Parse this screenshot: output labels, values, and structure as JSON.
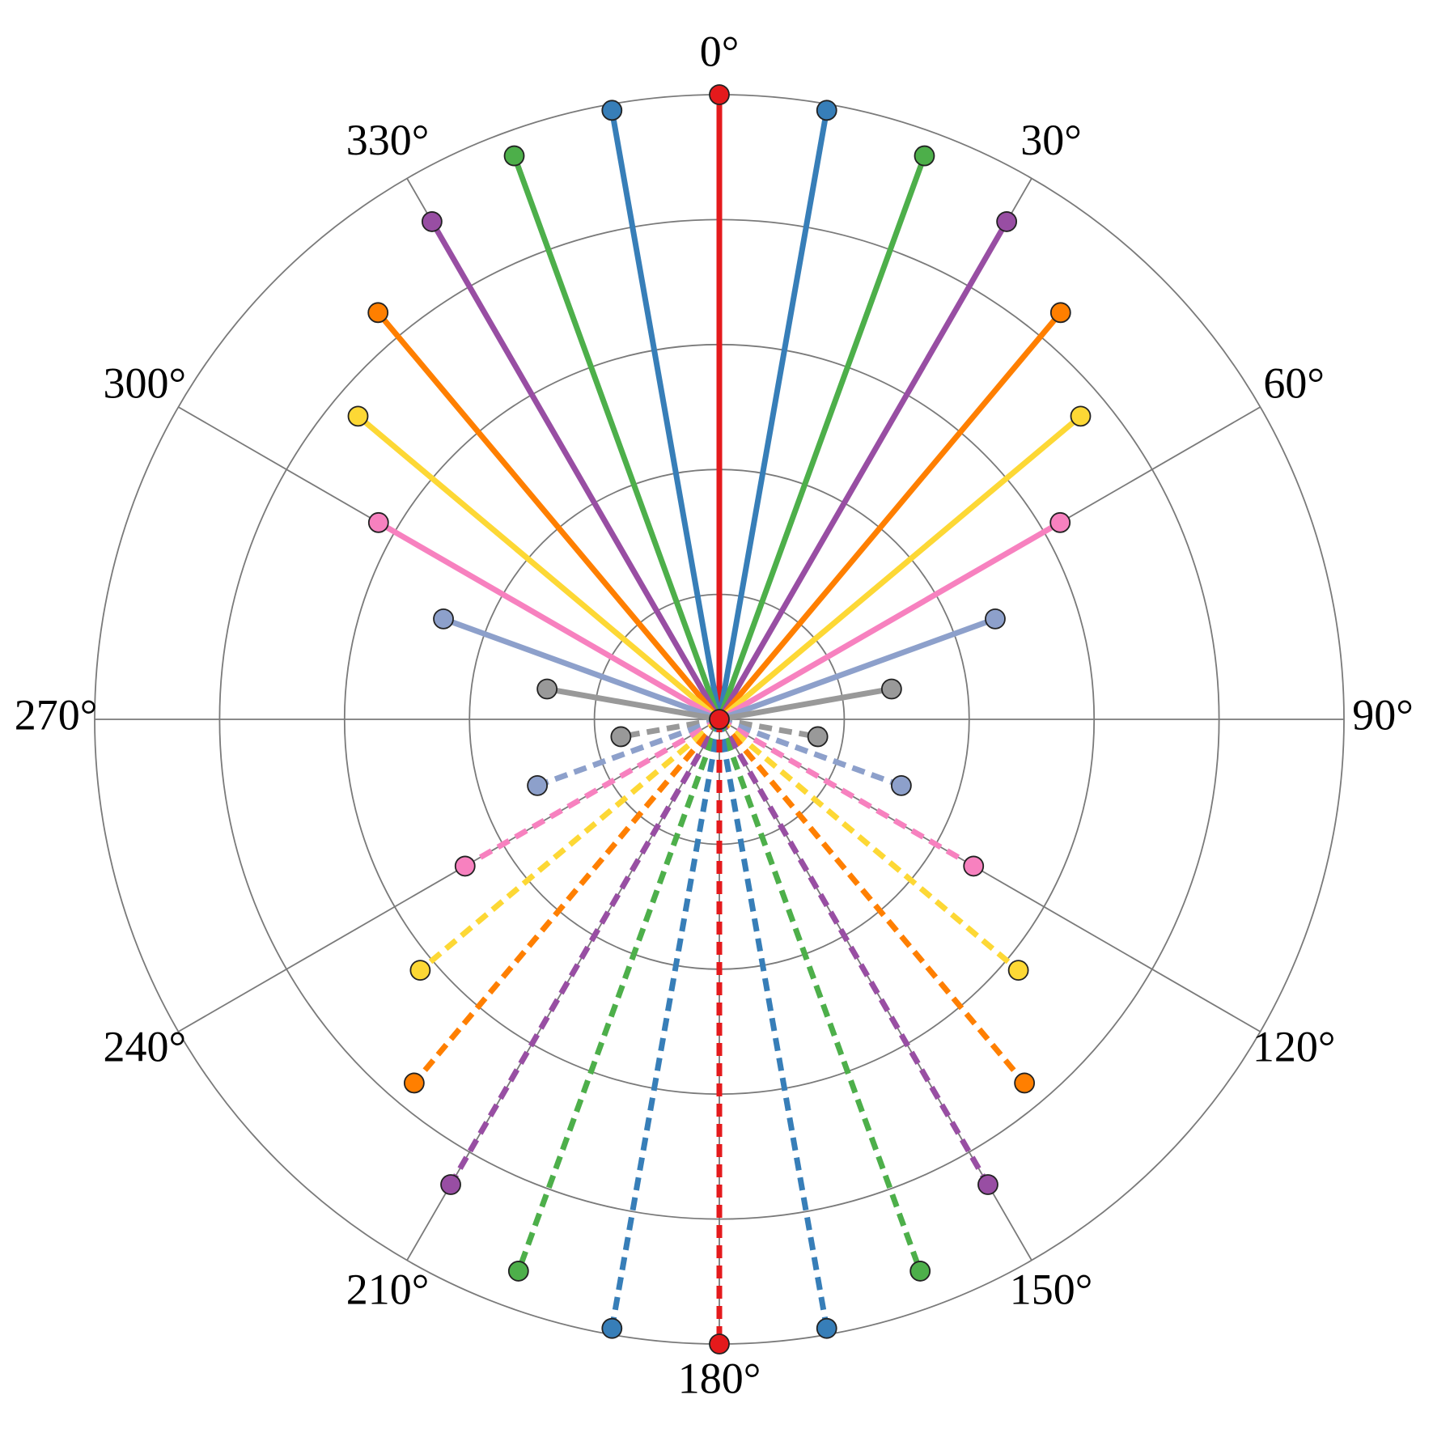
{
  "chart_data": {
    "type": "polar",
    "rlim": [
      0,
      1
    ],
    "rticks": [
      0.2,
      0.4,
      0.6,
      0.8,
      1.0
    ],
    "thetaticks": [
      {
        "value": 0,
        "label": "0°"
      },
      {
        "value": 30,
        "label": "30°"
      },
      {
        "value": 60,
        "label": "60°"
      },
      {
        "value": 90,
        "label": "90°"
      },
      {
        "value": 120,
        "label": "120°"
      },
      {
        "value": 150,
        "label": "150°"
      },
      {
        "value": 180,
        "label": "180°"
      },
      {
        "value": 210,
        "label": "210°"
      },
      {
        "value": 240,
        "label": "240°"
      },
      {
        "value": 270,
        "label": "270°"
      },
      {
        "value": 300,
        "label": "300°"
      },
      {
        "value": 330,
        "label": "330°"
      }
    ],
    "grid": true,
    "series": [
      {
        "color": "#e41a1c",
        "style": "solid",
        "theta": [
          0
        ],
        "r": [
          1.0
        ]
      },
      {
        "color": "#377eb8",
        "style": "solid",
        "theta": [
          350,
          10
        ],
        "r": [
          0.99,
          0.99
        ]
      },
      {
        "color": "#4daf4a",
        "style": "solid",
        "theta": [
          340,
          20
        ],
        "r": [
          0.96,
          0.96
        ]
      },
      {
        "color": "#984ea3",
        "style": "solid",
        "theta": [
          330,
          30
        ],
        "r": [
          0.92,
          0.92
        ]
      },
      {
        "color": "#ff7f00",
        "style": "solid",
        "theta": [
          320,
          40
        ],
        "r": [
          0.85,
          0.85
        ]
      },
      {
        "color": "#fdd835",
        "style": "solid",
        "theta": [
          310,
          50
        ],
        "r": [
          0.755,
          0.755
        ]
      },
      {
        "color": "#f781bf",
        "style": "solid",
        "theta": [
          300,
          60
        ],
        "r": [
          0.63,
          0.63
        ]
      },
      {
        "color": "#8da0cb",
        "style": "solid",
        "theta": [
          290,
          70
        ],
        "r": [
          0.47,
          0.47
        ]
      },
      {
        "color": "#999999",
        "style": "solid",
        "theta": [
          280,
          80
        ],
        "r": [
          0.28,
          0.28
        ]
      },
      {
        "color": "#999999",
        "style": "dashed",
        "theta": [
          260,
          100
        ],
        "r": [
          0.16,
          0.16
        ]
      },
      {
        "color": "#8da0cb",
        "style": "dashed",
        "theta": [
          250,
          110
        ],
        "r": [
          0.31,
          0.31
        ]
      },
      {
        "color": "#f781bf",
        "style": "dashed",
        "theta": [
          240,
          120
        ],
        "r": [
          0.47,
          0.47
        ]
      },
      {
        "color": "#fdd835",
        "style": "dashed",
        "theta": [
          230,
          130
        ],
        "r": [
          0.625,
          0.625
        ]
      },
      {
        "color": "#ff7f00",
        "style": "dashed",
        "theta": [
          220,
          140
        ],
        "r": [
          0.76,
          0.76
        ]
      },
      {
        "color": "#984ea3",
        "style": "dashed",
        "theta": [
          210,
          150
        ],
        "r": [
          0.86,
          0.86
        ]
      },
      {
        "color": "#4daf4a",
        "style": "dashed",
        "theta": [
          200,
          160
        ],
        "r": [
          0.94,
          0.94
        ]
      },
      {
        "color": "#377eb8",
        "style": "dashed",
        "theta": [
          190,
          170
        ],
        "r": [
          0.99,
          0.99
        ]
      },
      {
        "color": "#e41a1c",
        "style": "dashed",
        "theta": [
          180
        ],
        "r": [
          1.0
        ]
      }
    ]
  }
}
